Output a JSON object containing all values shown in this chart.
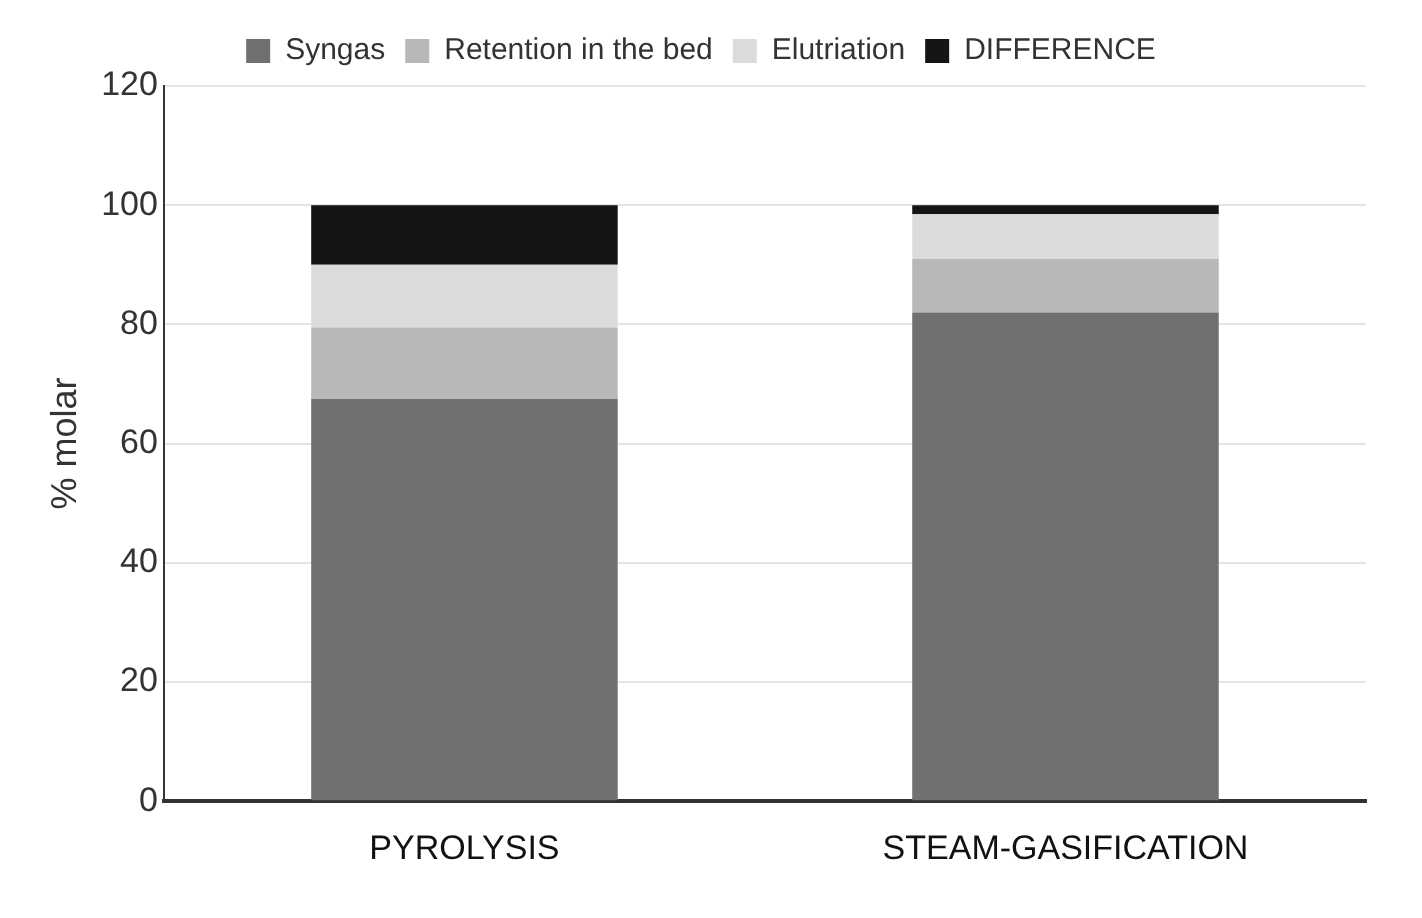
{
  "chart_data": {
    "type": "bar",
    "stacked": true,
    "categories": [
      "PYROLYSIS",
      "STEAM-GASIFICATION"
    ],
    "series": [
      {
        "name": "Syngas",
        "color": "#707070",
        "values": [
          67.5,
          82
        ]
      },
      {
        "name": "Retention in the bed",
        "color": "#b8b8b8",
        "values": [
          12,
          9
        ]
      },
      {
        "name": "Elutriation",
        "color": "#dcdcdc",
        "values": [
          10.5,
          7.5
        ]
      },
      {
        "name": "DIFFERENCE",
        "color": "#151515",
        "values": [
          10,
          1.5
        ]
      }
    ],
    "ylabel": "% molar",
    "ylim": [
      0,
      120
    ],
    "yticks": [
      0,
      20,
      40,
      60,
      80,
      100,
      120
    ],
    "grid": "y",
    "legend": "top"
  }
}
